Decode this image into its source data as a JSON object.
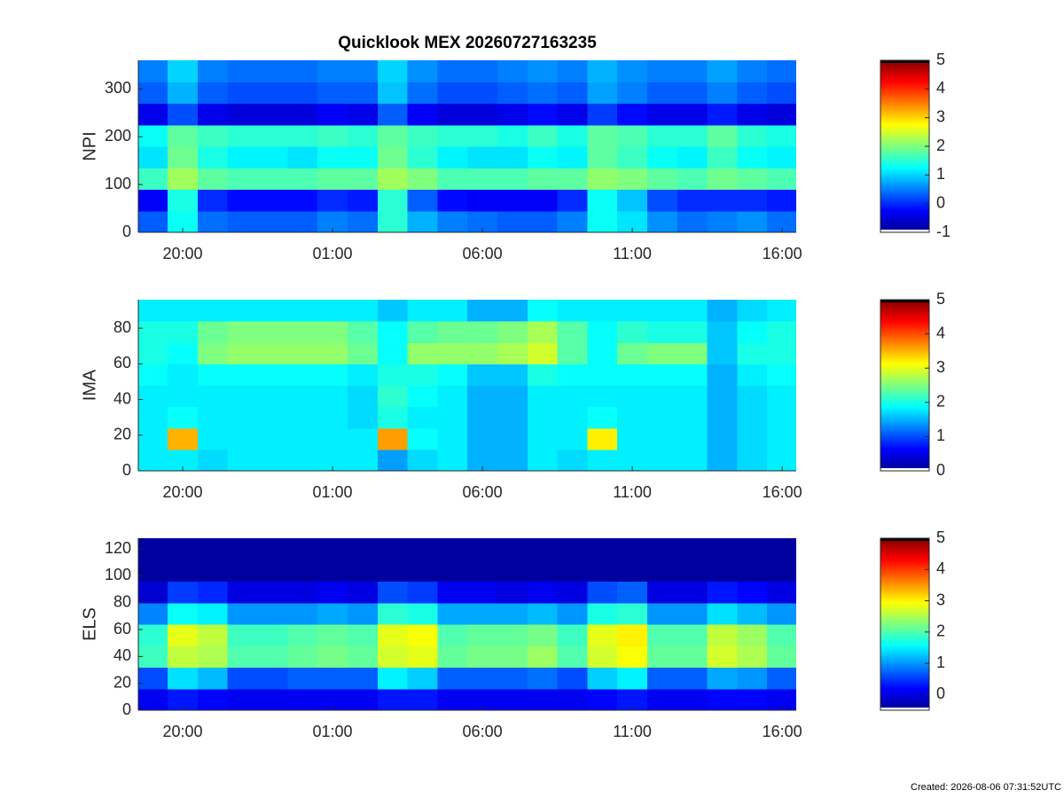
{
  "chart_data": [
    {
      "type": "heatmap",
      "title": "Quicklook MEX 20260727163235",
      "ylabel": "NPI",
      "x": [
        19,
        20,
        21,
        22,
        23,
        24,
        25,
        26,
        27,
        28,
        29,
        30,
        31,
        32,
        33,
        34,
        35,
        36,
        37,
        38,
        39,
        40
      ],
      "y": [
        22.5,
        67.5,
        112.5,
        157.5,
        202.5,
        247.5,
        292.5,
        337.5
      ],
      "z": [
        [
          0.3,
          1.3,
          0.4,
          0.3,
          0.3,
          0.3,
          0.5,
          0.4,
          1.5,
          0.8,
          0.5,
          0.4,
          0.3,
          0.3,
          0.5,
          1.3,
          1.1,
          0.6,
          0.4,
          0.5,
          0.6,
          0.4
        ],
        [
          -0.3,
          1.4,
          0,
          -0.2,
          -0.2,
          -0.2,
          0,
          -0.1,
          1.5,
          0.3,
          -0.2,
          -0.3,
          -0.3,
          -0.3,
          0,
          1.3,
          0.9,
          0.2,
          0,
          0,
          0,
          -0.1
        ],
        [
          1.6,
          2.2,
          1.8,
          1.7,
          1.7,
          1.7,
          1.8,
          1.8,
          2.2,
          2.0,
          1.7,
          1.7,
          1.7,
          1.8,
          1.8,
          2.1,
          2.0,
          1.8,
          1.7,
          1.9,
          1.8,
          1.7
        ],
        [
          1.1,
          1.9,
          1.4,
          1.2,
          1.2,
          1.1,
          1.3,
          1.3,
          1.9,
          1.5,
          1.2,
          1.1,
          1.1,
          1.3,
          1.2,
          1.8,
          1.6,
          1.3,
          1.2,
          1.6,
          1.3,
          1.2
        ],
        [
          1.3,
          1.8,
          1.6,
          1.5,
          1.5,
          1.5,
          1.6,
          1.5,
          1.8,
          1.6,
          1.5,
          1.5,
          1.4,
          1.6,
          1.4,
          1.8,
          1.7,
          1.5,
          1.5,
          1.8,
          1.5,
          1.4
        ],
        [
          -0.4,
          0.2,
          -0.4,
          -0.5,
          -0.5,
          -0.5,
          -0.3,
          -0.4,
          0.3,
          -0.3,
          -0.5,
          -0.5,
          -0.4,
          -0.2,
          -0.4,
          0.1,
          -0.2,
          -0.4,
          -0.4,
          -0.1,
          -0.4,
          -0.5
        ],
        [
          0.3,
          0.8,
          0.3,
          0.2,
          0.2,
          0.2,
          0.3,
          0.3,
          0.9,
          0.4,
          0.2,
          0.2,
          0.3,
          0.4,
          0.3,
          0.7,
          0.5,
          0.3,
          0.3,
          0.5,
          0.3,
          0.2
        ],
        [
          0.5,
          1.0,
          0.5,
          0.4,
          0.4,
          0.4,
          0.5,
          0.5,
          1.0,
          0.6,
          0.4,
          0.4,
          0.5,
          0.6,
          0.5,
          0.8,
          0.6,
          0.5,
          0.5,
          0.7,
          0.5,
          0.4
        ]
      ],
      "xlim": [
        18.52,
        40.47
      ],
      "xticks": [
        {
          "value": 20,
          "label": "20:00"
        },
        {
          "value": 25,
          "label": "01:00"
        },
        {
          "value": 30,
          "label": "06:00"
        },
        {
          "value": 35,
          "label": "11:00"
        },
        {
          "value": 40,
          "label": "16:00"
        }
      ],
      "ylim": [
        0,
        360
      ],
      "yticks": [
        0,
        100,
        200,
        300
      ],
      "clim": [
        -1,
        5
      ],
      "cticks": [
        -1,
        0,
        1,
        2,
        3,
        4,
        5
      ]
    },
    {
      "type": "heatmap",
      "ylabel": "IMA",
      "x": [
        19,
        20,
        21,
        22,
        23,
        24,
        25,
        26,
        27,
        28,
        29,
        30,
        31,
        32,
        33,
        34,
        35,
        36,
        37,
        38,
        39,
        40
      ],
      "y": [
        6,
        18,
        30,
        42,
        54,
        66,
        78,
        90
      ],
      "z": [
        [
          1.8,
          1.8,
          1.7,
          1.8,
          1.8,
          1.8,
          1.8,
          1.8,
          1.4,
          1.7,
          1.8,
          1.5,
          1.5,
          1.8,
          1.7,
          1.8,
          1.8,
          1.8,
          1.8,
          1.5,
          1.7,
          1.8
        ],
        [
          1.8,
          3.5,
          1.8,
          1.8,
          1.8,
          1.8,
          1.8,
          1.8,
          3.6,
          1.9,
          1.8,
          1.5,
          1.5,
          1.8,
          1.8,
          3.2,
          1.8,
          1.8,
          1.8,
          1.5,
          1.7,
          1.8
        ],
        [
          1.8,
          1.9,
          1.8,
          1.8,
          1.8,
          1.8,
          1.8,
          1.7,
          2.0,
          1.8,
          1.8,
          1.5,
          1.5,
          1.8,
          1.8,
          1.9,
          1.8,
          1.8,
          1.8,
          1.5,
          1.7,
          1.8
        ],
        [
          1.8,
          1.8,
          1.8,
          1.8,
          1.8,
          1.8,
          1.8,
          1.7,
          2.1,
          1.9,
          1.8,
          1.5,
          1.5,
          1.8,
          1.8,
          1.8,
          1.8,
          1.8,
          1.8,
          1.5,
          1.7,
          1.8
        ],
        [
          1.9,
          1.8,
          1.9,
          1.9,
          1.9,
          1.9,
          1.9,
          1.8,
          2.0,
          2.0,
          1.9,
          1.6,
          1.6,
          2.0,
          1.9,
          1.9,
          1.9,
          1.9,
          1.9,
          1.5,
          1.8,
          1.9
        ],
        [
          2.0,
          1.9,
          2.5,
          2.6,
          2.6,
          2.6,
          2.6,
          2.4,
          1.9,
          2.6,
          2.6,
          2.6,
          2.7,
          2.9,
          2.3,
          1.9,
          2.4,
          2.5,
          2.5,
          1.6,
          2.0,
          2.0
        ],
        [
          2.0,
          2.0,
          2.4,
          2.5,
          2.5,
          2.5,
          2.5,
          2.3,
          1.9,
          2.3,
          2.4,
          2.4,
          2.5,
          2.7,
          2.3,
          1.9,
          2.1,
          2.0,
          2.0,
          1.6,
          1.9,
          2.0
        ],
        [
          1.8,
          1.8,
          1.8,
          1.8,
          1.8,
          1.8,
          1.8,
          1.8,
          1.6,
          1.8,
          1.8,
          1.5,
          1.5,
          1.9,
          1.8,
          1.8,
          1.8,
          1.8,
          1.8,
          1.5,
          1.7,
          1.8
        ]
      ],
      "xlim": [
        18.52,
        40.47
      ],
      "xticks": [
        {
          "value": 20,
          "label": "20:00"
        },
        {
          "value": 25,
          "label": "01:00"
        },
        {
          "value": 30,
          "label": "06:00"
        },
        {
          "value": 35,
          "label": "11:00"
        },
        {
          "value": 40,
          "label": "16:00"
        }
      ],
      "ylim": [
        0,
        96
      ],
      "yticks": [
        0,
        20,
        40,
        60,
        80
      ],
      "clim": [
        0,
        5
      ],
      "cticks": [
        0,
        1,
        2,
        3,
        4,
        5
      ]
    },
    {
      "type": "heatmap",
      "ylabel": "ELS",
      "x": [
        19,
        20,
        21,
        22,
        23,
        24,
        25,
        26,
        27,
        28,
        29,
        30,
        31,
        32,
        33,
        34,
        35,
        36,
        37,
        38,
        39,
        40
      ],
      "y": [
        8,
        24,
        40,
        56,
        72,
        88,
        104,
        120
      ],
      "z": [
        [
          0.1,
          0.3,
          0.2,
          0.1,
          0.1,
          0.1,
          0.1,
          0.1,
          0.3,
          0.3,
          0.1,
          0.1,
          0.1,
          0.1,
          0.1,
          0.2,
          0.3,
          0.1,
          0.1,
          0.2,
          0.2,
          0.1
        ],
        [
          0.6,
          1.4,
          1.2,
          0.6,
          0.6,
          0.7,
          0.7,
          0.7,
          1.5,
          1.3,
          0.7,
          0.7,
          0.7,
          0.8,
          0.6,
          1.3,
          1.5,
          0.7,
          0.7,
          1.1,
          1.0,
          0.7
        ],
        [
          1.9,
          2.6,
          2.5,
          2.0,
          2.0,
          2.1,
          2.2,
          2.1,
          2.7,
          2.8,
          2.1,
          2.2,
          2.2,
          2.4,
          2.0,
          2.7,
          2.9,
          2.1,
          2.1,
          2.7,
          2.5,
          2.1
        ],
        [
          1.8,
          2.8,
          2.6,
          1.9,
          1.9,
          2.0,
          2.1,
          2.0,
          2.8,
          2.9,
          2.0,
          2.1,
          2.1,
          2.2,
          1.9,
          2.8,
          3.0,
          2.0,
          2.0,
          2.6,
          2.4,
          2.0
        ],
        [
          0.9,
          1.6,
          1.5,
          1.0,
          1.0,
          1.0,
          1.1,
          1.0,
          1.8,
          1.7,
          1.1,
          1.1,
          1.1,
          1.2,
          1.0,
          1.7,
          1.8,
          1.0,
          1.0,
          1.4,
          1.2,
          1.0
        ],
        [
          -0.1,
          0.5,
          0.4,
          0.0,
          0.0,
          0.0,
          0.1,
          0.0,
          0.6,
          0.5,
          0.1,
          0.1,
          0.0,
          0.1,
          0.0,
          0.6,
          0.7,
          0.0,
          0.0,
          0.3,
          0.2,
          0.0
        ],
        [
          -0.4,
          -0.4,
          -0.4,
          -0.4,
          -0.4,
          -0.4,
          -0.4,
          -0.4,
          -0.4,
          -0.4,
          -0.4,
          -0.4,
          -0.4,
          -0.4,
          -0.4,
          -0.4,
          -0.4,
          -0.4,
          -0.4,
          -0.4,
          -0.4,
          -0.4
        ],
        [
          -0.4,
          -0.4,
          -0.4,
          -0.4,
          -0.4,
          -0.4,
          -0.4,
          -0.4,
          -0.4,
          -0.4,
          -0.4,
          -0.4,
          -0.4,
          -0.4,
          -0.4,
          -0.4,
          -0.4,
          -0.4,
          -0.4,
          -0.4,
          -0.4,
          -0.4
        ]
      ],
      "xlim": [
        18.52,
        40.47
      ],
      "xticks": [
        {
          "value": 20,
          "label": "20:00"
        },
        {
          "value": 25,
          "label": "01:00"
        },
        {
          "value": 30,
          "label": "06:00"
        },
        {
          "value": 35,
          "label": "11:00"
        },
        {
          "value": 40,
          "label": "16:00"
        }
      ],
      "ylim": [
        0,
        128
      ],
      "yticks": [
        0,
        20,
        40,
        60,
        80,
        100,
        120
      ],
      "clim": [
        -0.5,
        5
      ],
      "cticks": [
        0,
        1,
        2,
        3,
        4,
        5
      ]
    }
  ],
  "colormap": [
    "#00008f",
    "#0000ff",
    "#007fff",
    "#00ffff",
    "#7fff7f",
    "#ffff00",
    "#ff7f00",
    "#ff0000",
    "#7f0000"
  ],
  "under_color": "#ffffff",
  "over_color": "#000000",
  "footer": "Created: 2026-08-06 07:31:52UTC"
}
